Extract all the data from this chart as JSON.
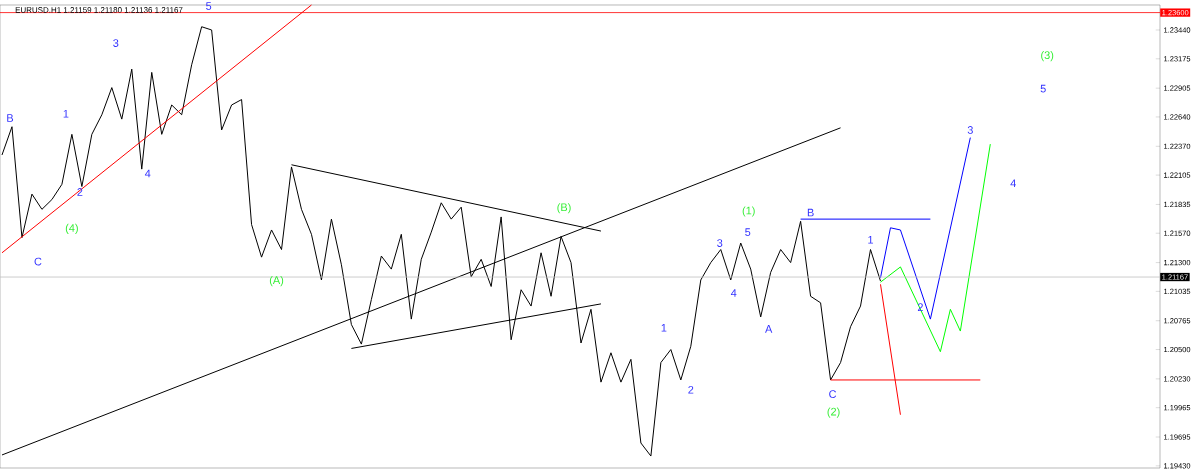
{
  "chart_data": {
    "type": "line",
    "title": "EURUSD.H1  1.21159 1.21180 1.21136 1.21167",
    "categories": [
      null,
      null,
      null,
      null,
      null,
      null,
      null,
      null,
      null,
      null,
      null,
      null,
      null,
      null,
      null,
      null,
      null,
      null,
      null,
      null,
      null,
      null,
      null,
      null,
      null,
      null,
      null,
      null,
      null,
      null,
      null,
      null,
      null,
      null,
      null,
      null,
      null,
      null,
      null,
      null,
      null,
      null,
      null,
      null,
      null,
      null,
      null,
      null,
      null,
      null,
      null,
      null,
      null,
      null,
      null,
      null,
      null,
      null,
      null,
      null,
      null,
      null,
      null,
      null,
      null,
      null,
      null,
      null,
      null,
      null,
      null,
      null,
      null,
      null,
      null,
      null,
      null,
      null,
      null,
      null,
      null,
      null,
      null,
      null,
      null,
      null,
      null,
      null,
      null,
      null,
      null,
      null,
      null,
      null,
      null,
      null,
      null,
      null,
      null,
      null,
      null,
      null,
      null,
      null,
      null,
      null,
      null,
      null,
      null,
      null,
      null,
      null,
      null,
      null,
      null,
      null,
      null
    ],
    "ylim": [
      1.1941,
      1.2367
    ],
    "tick_labels": "y",
    "yticks": [
      {
        "value": 1.2344,
        "label": "1.23440"
      },
      {
        "value": 1.23175,
        "label": "1.23175"
      },
      {
        "value": 1.22905,
        "label": "1.22905"
      },
      {
        "value": 1.2264,
        "label": "1.22640"
      },
      {
        "value": 1.2237,
        "label": "1.22370"
      },
      {
        "value": 1.22105,
        "label": "1.22105"
      },
      {
        "value": 1.21835,
        "label": "1.21835"
      },
      {
        "value": 1.2157,
        "label": "1.21570"
      },
      {
        "value": 1.213,
        "label": "1.21300"
      },
      {
        "value": 1.21035,
        "label": "1.21035"
      },
      {
        "value": 1.20765,
        "label": "1.20765"
      },
      {
        "value": 1.205,
        "label": "1.20500"
      },
      {
        "value": 1.2023,
        "label": "1.20230"
      },
      {
        "value": 1.19965,
        "label": "1.19965"
      },
      {
        "value": 1.19695,
        "label": "1.19695"
      },
      {
        "value": 1.1943,
        "label": "1.19430"
      }
    ],
    "series": [
      {
        "color": "#000000",
        "values": [
          1.2229,
          1.2255,
          1.2153,
          1.2193,
          1.2179,
          1.2188,
          1.2202,
          1.2248,
          1.22,
          1.2248,
          1.2266,
          1.2291,
          1.2262,
          1.2308,
          1.2216,
          1.2305,
          1.2248,
          1.2275,
          1.2266,
          1.2312,
          1.2347,
          1.2344,
          1.2252,
          1.2275,
          1.228,
          1.2165,
          1.2135,
          1.216,
          1.2142,
          1.2218,
          1.2179,
          1.2156,
          1.2114,
          1.217,
          1.2128,
          1.2073,
          1.2055,
          1.2096,
          1.2136,
          1.2124,
          1.2156,
          1.2078,
          1.2133,
          1.2158,
          1.2185,
          1.217,
          1.2181,
          1.2117,
          1.2133,
          1.2108,
          1.2172,
          1.2059,
          1.2105,
          1.209,
          1.2139,
          1.2099,
          1.2154,
          1.213,
          1.2056,
          1.2087,
          1.202,
          1.2047,
          1.202,
          1.2041,
          1.1964,
          1.1952,
          1.2038,
          1.205,
          1.2022,
          1.2053,
          1.2114,
          1.213,
          1.2142,
          1.2114,
          1.2148,
          1.2124,
          1.208,
          1.2121,
          1.2142,
          1.213,
          1.2168,
          1.2099,
          1.2093,
          1.2022,
          1.2038,
          1.2071,
          1.209,
          1.2142,
          1.2113,
          null,
          null,
          null,
          null,
          null,
          null,
          null,
          null,
          null,
          null,
          null,
          null,
          null,
          null,
          null,
          null,
          null,
          null,
          null,
          null,
          null,
          null,
          null,
          null,
          null,
          null,
          null,
          null
        ]
      },
      {
        "color": "#ff0000",
        "values": [
          1.2139,
          null,
          null,
          null,
          null,
          null,
          null,
          null,
          null,
          null,
          null,
          null,
          null,
          null,
          null,
          null,
          null,
          null,
          null,
          null,
          null,
          null,
          null,
          null,
          null,
          null,
          null,
          null,
          null,
          null,
          null,
          1.2367,
          null,
          null,
          null,
          null,
          null,
          null,
          null,
          null,
          null,
          null,
          null,
          null,
          null,
          null,
          null,
          null,
          null,
          null,
          null,
          null,
          null,
          null,
          null,
          null,
          null,
          null,
          null,
          null,
          null,
          null,
          null,
          null,
          null,
          null,
          null,
          null,
          null,
          null,
          null,
          null,
          null,
          null,
          null,
          null,
          null,
          null,
          null,
          null,
          null,
          null,
          null,
          null,
          null,
          null,
          null,
          null,
          null,
          null,
          null,
          null,
          null,
          null,
          null,
          null,
          null,
          null,
          null,
          null,
          null,
          null,
          null,
          null,
          null,
          null,
          null,
          null,
          null,
          null,
          null,
          null,
          null,
          null,
          null,
          null,
          null
        ]
      },
      {
        "color": "#000000",
        "values": [
          1.1953,
          null,
          null,
          null,
          null,
          null,
          null,
          null,
          null,
          null,
          null,
          null,
          null,
          null,
          null,
          null,
          null,
          null,
          null,
          null,
          null,
          null,
          null,
          null,
          null,
          null,
          null,
          null,
          null,
          null,
          null,
          null,
          null,
          null,
          null,
          null,
          null,
          null,
          null,
          null,
          null,
          null,
          null,
          null,
          null,
          null,
          null,
          null,
          null,
          null,
          null,
          null,
          null,
          null,
          null,
          null,
          null,
          null,
          null,
          null,
          null,
          null,
          null,
          null,
          null,
          null,
          null,
          null,
          null,
          null,
          null,
          null,
          null,
          null,
          null,
          null,
          null,
          null,
          null,
          null,
          null,
          null,
          null,
          null,
          1.2254,
          null,
          null,
          null,
          null,
          null,
          null,
          null,
          null,
          null,
          null,
          null,
          null,
          null,
          null,
          null,
          null,
          null,
          null,
          null,
          null,
          null,
          null,
          null,
          null,
          null,
          null,
          null,
          null,
          null,
          null,
          null,
          null
        ]
      },
      {
        "color": "#000000",
        "values": [
          null,
          null,
          null,
          null,
          null,
          null,
          null,
          null,
          null,
          null,
          null,
          null,
          null,
          null,
          null,
          null,
          null,
          null,
          null,
          null,
          null,
          null,
          null,
          null,
          null,
          null,
          null,
          null,
          null,
          1.222,
          null,
          null,
          null,
          null,
          null,
          null,
          null,
          null,
          null,
          null,
          null,
          null,
          null,
          null,
          null,
          null,
          null,
          null,
          null,
          null,
          null,
          null,
          null,
          null,
          null,
          null,
          null,
          null,
          null,
          null,
          1.2159,
          null,
          null,
          null,
          null,
          null,
          null,
          null,
          null,
          null,
          null,
          null,
          null,
          null,
          null,
          null,
          null,
          null,
          null,
          null,
          null,
          null,
          null,
          null,
          null,
          null,
          null,
          null,
          null,
          null,
          null,
          null,
          null,
          null,
          null,
          null,
          null,
          null,
          null,
          null,
          null,
          null,
          null,
          null,
          null,
          null,
          null,
          null,
          null,
          null,
          null,
          null,
          null,
          null,
          null,
          null,
          null
        ]
      },
      {
        "color": "#000000",
        "values": [
          null,
          null,
          null,
          null,
          null,
          null,
          null,
          null,
          null,
          null,
          null,
          null,
          null,
          null,
          null,
          null,
          null,
          null,
          null,
          null,
          null,
          null,
          null,
          null,
          null,
          null,
          null,
          null,
          null,
          null,
          null,
          null,
          null,
          null,
          null,
          1.2051,
          null,
          null,
          null,
          null,
          null,
          null,
          null,
          null,
          null,
          null,
          null,
          null,
          null,
          null,
          null,
          null,
          null,
          null,
          null,
          null,
          null,
          null,
          null,
          null,
          1.2092,
          null,
          null,
          null,
          null,
          null,
          null,
          null,
          null,
          null,
          null,
          null,
          null,
          null,
          null,
          null,
          null,
          null,
          null,
          null,
          null,
          null,
          null,
          null,
          null,
          null,
          null,
          null,
          null,
          null,
          null,
          null,
          null,
          null,
          null,
          null,
          null,
          null,
          null,
          null,
          null,
          null,
          null,
          null,
          null,
          null,
          null,
          null,
          null,
          null,
          null,
          null,
          null,
          null,
          null,
          null,
          null
        ]
      },
      {
        "color": "#0000ff",
        "values": [
          null,
          null,
          null,
          null,
          null,
          null,
          null,
          null,
          null,
          null,
          null,
          null,
          null,
          null,
          null,
          null,
          null,
          null,
          null,
          null,
          null,
          null,
          null,
          null,
          null,
          null,
          null,
          null,
          null,
          null,
          null,
          null,
          null,
          null,
          null,
          null,
          null,
          null,
          null,
          null,
          null,
          null,
          null,
          null,
          null,
          null,
          null,
          null,
          null,
          null,
          null,
          null,
          null,
          null,
          null,
          null,
          null,
          null,
          null,
          null,
          null,
          null,
          null,
          null,
          null,
          null,
          null,
          null,
          null,
          null,
          null,
          null,
          null,
          null,
          null,
          null,
          null,
          null,
          null,
          null,
          1.217,
          null,
          null,
          null,
          null,
          null,
          null,
          null,
          null,
          null,
          null,
          null,
          null,
          1.217,
          null,
          null,
          null,
          null,
          null,
          null,
          null,
          null,
          null,
          null,
          null,
          null,
          null,
          null,
          null,
          null,
          null,
          null,
          null,
          null,
          null,
          null,
          null
        ]
      },
      {
        "color": "#ff0000",
        "values": [
          null,
          null,
          null,
          null,
          null,
          null,
          null,
          null,
          null,
          null,
          null,
          null,
          null,
          null,
          null,
          null,
          null,
          null,
          null,
          null,
          null,
          null,
          null,
          null,
          null,
          null,
          null,
          null,
          null,
          null,
          null,
          null,
          null,
          null,
          null,
          null,
          null,
          null,
          null,
          null,
          null,
          null,
          null,
          null,
          null,
          null,
          null,
          null,
          null,
          null,
          null,
          null,
          null,
          null,
          null,
          null,
          null,
          null,
          null,
          null,
          null,
          null,
          null,
          null,
          null,
          null,
          null,
          null,
          null,
          null,
          null,
          null,
          null,
          null,
          null,
          null,
          null,
          null,
          null,
          null,
          null,
          null,
          null,
          1.2022,
          null,
          null,
          null,
          null,
          null,
          null,
          null,
          null,
          null,
          null,
          null,
          null,
          null,
          null,
          1.2022,
          null,
          null,
          null,
          null,
          null,
          null,
          null,
          null,
          null,
          null,
          null,
          null,
          null,
          null,
          null,
          null,
          null,
          null
        ]
      },
      {
        "color": "#0000ff",
        "values": [
          null,
          null,
          null,
          null,
          null,
          null,
          null,
          null,
          null,
          null,
          null,
          null,
          null,
          null,
          null,
          null,
          null,
          null,
          null,
          null,
          null,
          null,
          null,
          null,
          null,
          null,
          null,
          null,
          null,
          null,
          null,
          null,
          null,
          null,
          null,
          null,
          null,
          null,
          null,
          null,
          null,
          null,
          null,
          null,
          null,
          null,
          null,
          null,
          null,
          null,
          null,
          null,
          null,
          null,
          null,
          null,
          null,
          null,
          null,
          null,
          null,
          null,
          null,
          null,
          null,
          null,
          null,
          null,
          null,
          null,
          null,
          null,
          null,
          null,
          null,
          null,
          null,
          null,
          null,
          null,
          null,
          null,
          null,
          null,
          null,
          null,
          null,
          null,
          1.2116,
          1.2162,
          1.216,
          null,
          null,
          1.2078,
          null,
          null,
          null,
          1.2245,
          null,
          null,
          null,
          null,
          null,
          null,
          null,
          null,
          null,
          null,
          null,
          null,
          null,
          null,
          null,
          null,
          null,
          null,
          null
        ]
      },
      {
        "color": "#00ff00",
        "values": [
          null,
          null,
          null,
          null,
          null,
          null,
          null,
          null,
          null,
          null,
          null,
          null,
          null,
          null,
          null,
          null,
          null,
          null,
          null,
          null,
          null,
          null,
          null,
          null,
          null,
          null,
          null,
          null,
          null,
          null,
          null,
          null,
          null,
          null,
          null,
          null,
          null,
          null,
          null,
          null,
          null,
          null,
          null,
          null,
          null,
          null,
          null,
          null,
          null,
          null,
          null,
          null,
          null,
          null,
          null,
          null,
          null,
          null,
          null,
          null,
          null,
          null,
          null,
          null,
          null,
          null,
          null,
          null,
          null,
          null,
          null,
          null,
          null,
          null,
          null,
          null,
          null,
          null,
          null,
          null,
          null,
          null,
          null,
          null,
          null,
          null,
          null,
          null,
          1.2112,
          null,
          1.2126,
          null,
          null,
          null,
          1.2048,
          1.2087,
          1.2067,
          null,
          null,
          1.2239,
          null,
          null,
          null,
          null,
          null,
          null,
          null,
          null,
          null,
          null,
          null,
          null,
          null,
          null,
          null,
          null,
          null
        ]
      },
      {
        "color": "#ff0000",
        "values": [
          null,
          null,
          null,
          null,
          null,
          null,
          null,
          null,
          null,
          null,
          null,
          null,
          null,
          null,
          null,
          null,
          null,
          null,
          null,
          null,
          null,
          null,
          null,
          null,
          null,
          null,
          null,
          null,
          null,
          null,
          null,
          null,
          null,
          null,
          null,
          null,
          null,
          null,
          null,
          null,
          null,
          null,
          null,
          null,
          null,
          null,
          null,
          null,
          null,
          null,
          null,
          null,
          null,
          null,
          null,
          null,
          null,
          null,
          null,
          null,
          null,
          null,
          null,
          null,
          null,
          null,
          null,
          null,
          null,
          null,
          null,
          null,
          null,
          null,
          null,
          null,
          null,
          null,
          null,
          null,
          null,
          null,
          null,
          null,
          null,
          null,
          null,
          null,
          1.211,
          null,
          1.199,
          null,
          null,
          null,
          null,
          null,
          null,
          null,
          null,
          null,
          null,
          null,
          null,
          null,
          null,
          null,
          null,
          null,
          null,
          null,
          null,
          null,
          null,
          null,
          null,
          null,
          null
        ]
      }
    ],
    "ref_lines": [
      {
        "axis": "y",
        "value": 1.236,
        "label": "1.23600",
        "color": "#ff0000"
      },
      {
        "axis": "y",
        "value": 1.21167,
        "label": "1.21167",
        "color": "#c0c0c0"
      }
    ],
    "annotations": [
      "5",
      "3",
      "B",
      "1",
      "4",
      "2",
      "C",
      "(4)",
      "(A)",
      "(B)",
      "(1)",
      "3",
      "5",
      "4",
      "1",
      "2",
      "A",
      "B",
      "C",
      "(2)",
      "1",
      "2",
      "3",
      "4",
      "5",
      "(3)"
    ]
  }
}
